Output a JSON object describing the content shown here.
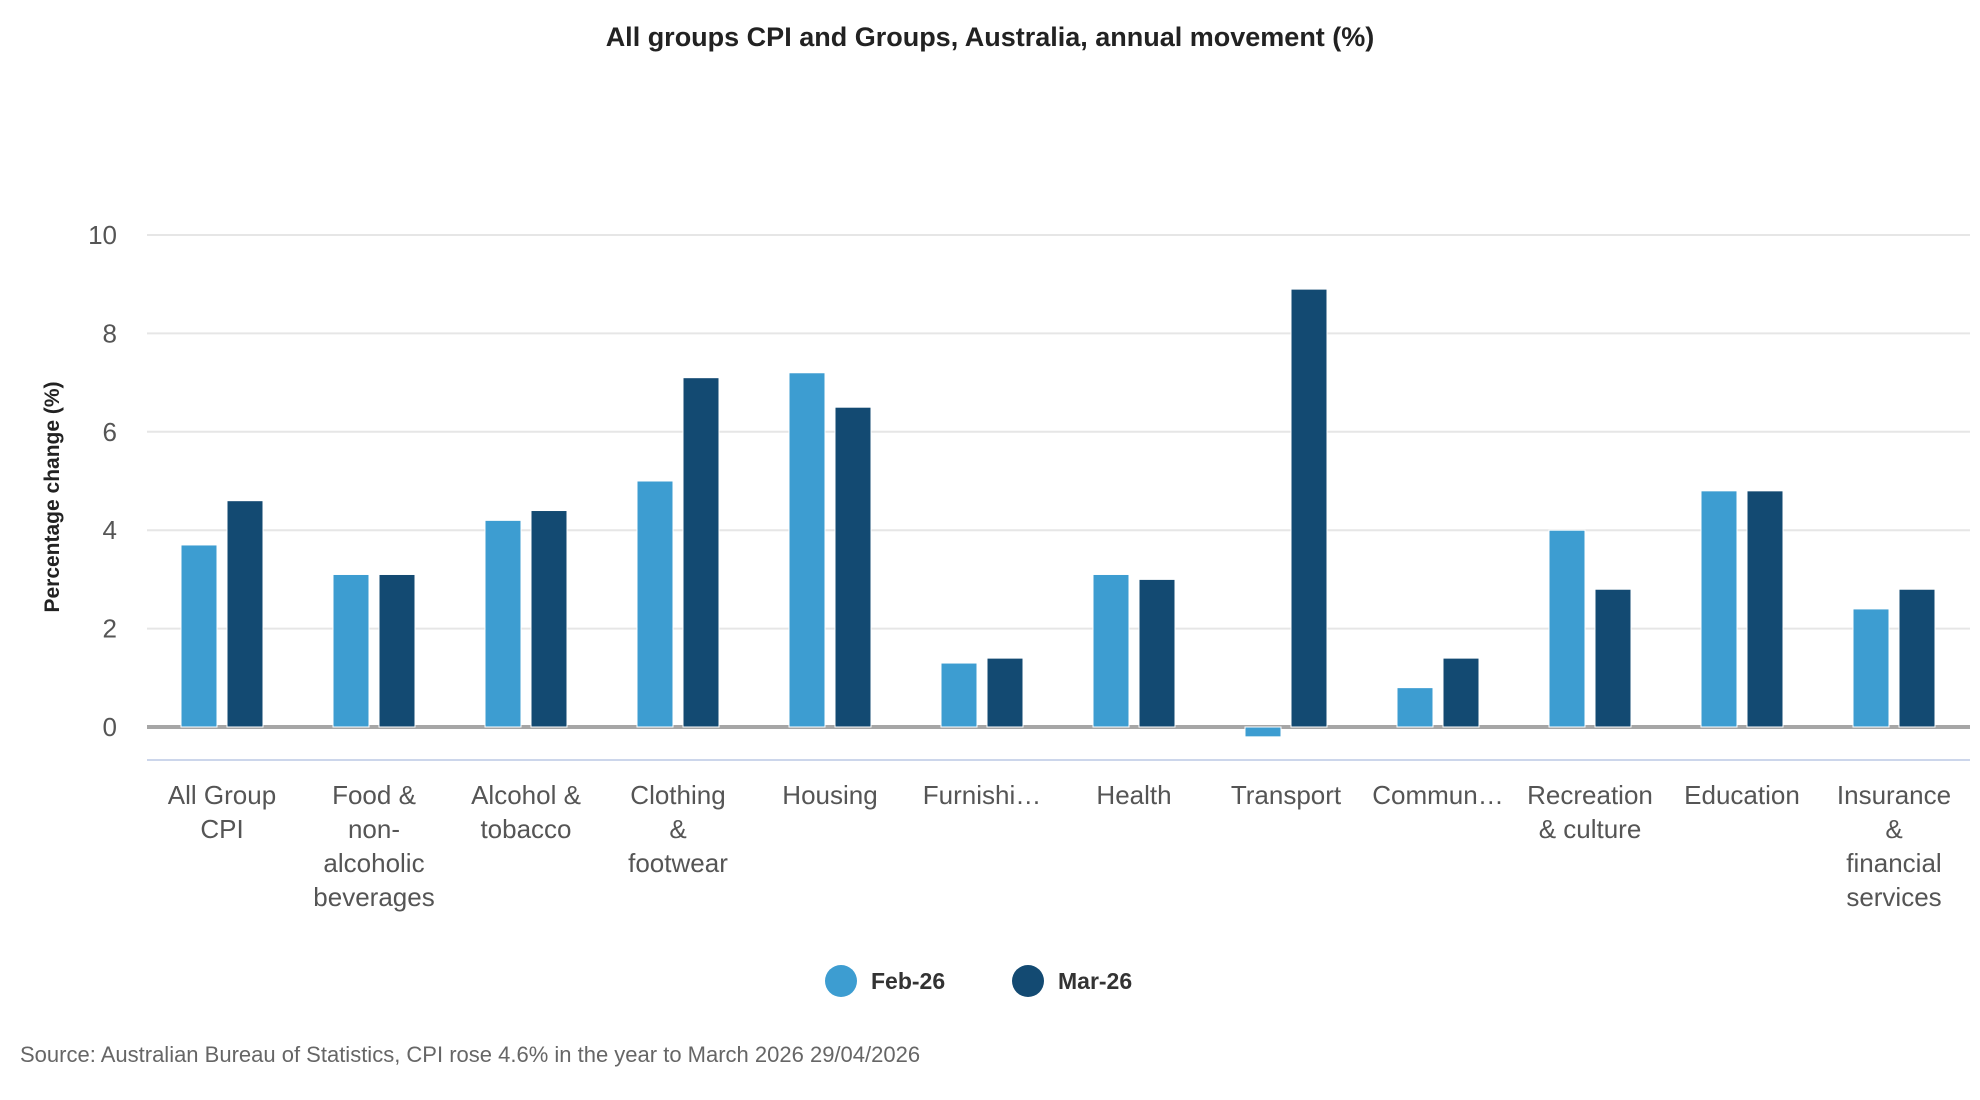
{
  "chart_data": {
    "type": "bar",
    "title": "All groups CPI and Groups, Australia, annual movement (%)",
    "ylabel": "Percentage change (%)",
    "xlabel": "",
    "ylim": [
      0,
      10
    ],
    "yticks": [
      0,
      2,
      4,
      6,
      8,
      10
    ],
    "grid": true,
    "legend_position": "bottom",
    "categories": [
      "All Group\nCPI",
      "Food &\nnon-\nalcoholic\nbeverages",
      "Alcohol &\ntobacco",
      "Clothing\n&\nfootwear",
      "Housing",
      "Furnishi…",
      "Health",
      "Transport",
      "Commun…",
      "Recreation\n& culture",
      "Education",
      "Insurance\n&\nfinancial\nservices"
    ],
    "series": [
      {
        "name": "Feb-26",
        "color": "#3d9dd1",
        "values": [
          3.7,
          3.1,
          4.2,
          5.0,
          7.2,
          1.3,
          3.1,
          -0.2,
          0.8,
          4.0,
          4.8,
          2.4
        ]
      },
      {
        "name": "Mar-26",
        "color": "#134a72",
        "values": [
          4.6,
          3.1,
          4.4,
          7.1,
          6.5,
          1.4,
          3.0,
          8.9,
          1.4,
          2.8,
          4.8,
          2.8
        ]
      }
    ]
  },
  "source": "Source: Australian Bureau of Statistics, CPI rose 4.6% in the year to March 2026 29/04/2026"
}
